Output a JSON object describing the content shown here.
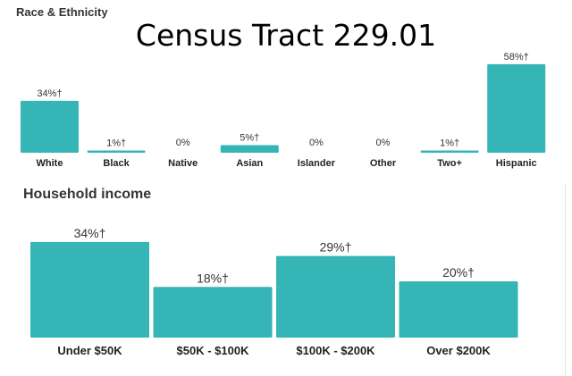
{
  "title": "Census Tract 229.01",
  "chart_data": [
    {
      "type": "bar",
      "title": "Race & Ethnicity",
      "categories": [
        "White",
        "Black",
        "Native",
        "Asian",
        "Islander",
        "Other",
        "Two+",
        "Hispanic"
      ],
      "values": [
        34,
        1,
        0,
        5,
        0,
        0,
        1,
        58
      ],
      "labels": [
        "34%†",
        "1%†",
        "0%",
        "5%†",
        "0%",
        "0%",
        "1%†",
        "58%†"
      ],
      "xlabel": "",
      "ylabel": "",
      "ylim": [
        0,
        58
      ],
      "grid": false
    },
    {
      "type": "bar",
      "title": "Household income",
      "categories": [
        "Under $50K",
        "$50K - $100K",
        "$100K - $200K",
        "Over $200K"
      ],
      "values": [
        34,
        18,
        29,
        20
      ],
      "labels": [
        "34%†",
        "18%†",
        "29%†",
        "20%†"
      ],
      "xlabel": "",
      "ylabel": "",
      "ylim": [
        0,
        34
      ],
      "grid": false
    }
  ],
  "colors": {
    "bar": "#35b5b5"
  }
}
